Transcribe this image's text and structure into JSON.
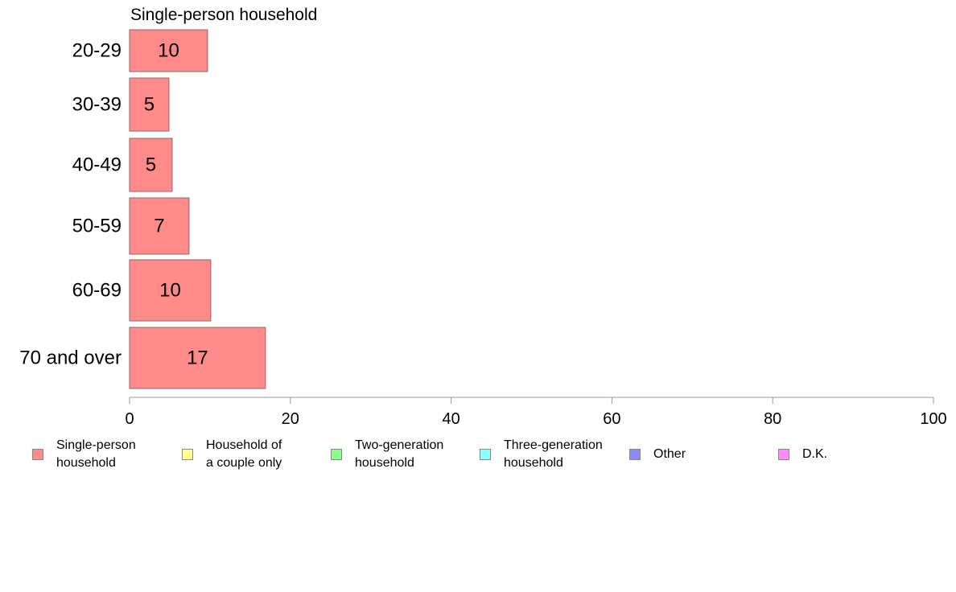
{
  "chart_data": {
    "type": "bar",
    "orientation": "horizontal",
    "title": "Single-person household",
    "categories": [
      "20-29",
      "30-39",
      "40-49",
      "50-59",
      "60-69",
      "70 and over"
    ],
    "series": [
      {
        "name": "Single-person household",
        "color": "#ff8a8a",
        "values": [
          9.7,
          4.9,
          5.3,
          7.4,
          10.1,
          16.9
        ],
        "labels": [
          "10",
          "5",
          "5",
          "7",
          "10",
          "17"
        ]
      }
    ],
    "xlim": [
      0,
      100
    ],
    "xticks": [
      0,
      20,
      40,
      60,
      80,
      100
    ],
    "grid": false,
    "legend_position": "bottom",
    "legend": [
      {
        "label": "Single-person\nhousehold",
        "color": "#ff8a8a"
      },
      {
        "label": "Household of\na couple only",
        "color": "#ffff8a"
      },
      {
        "label": "Two-generation\nhousehold",
        "color": "#8aff8a"
      },
      {
        "label": "Three-generation\nhousehold",
        "color": "#8affff"
      },
      {
        "label": "Other",
        "color": "#8a8aff"
      },
      {
        "label": "D.K.",
        "color": "#ff8aff"
      }
    ]
  }
}
